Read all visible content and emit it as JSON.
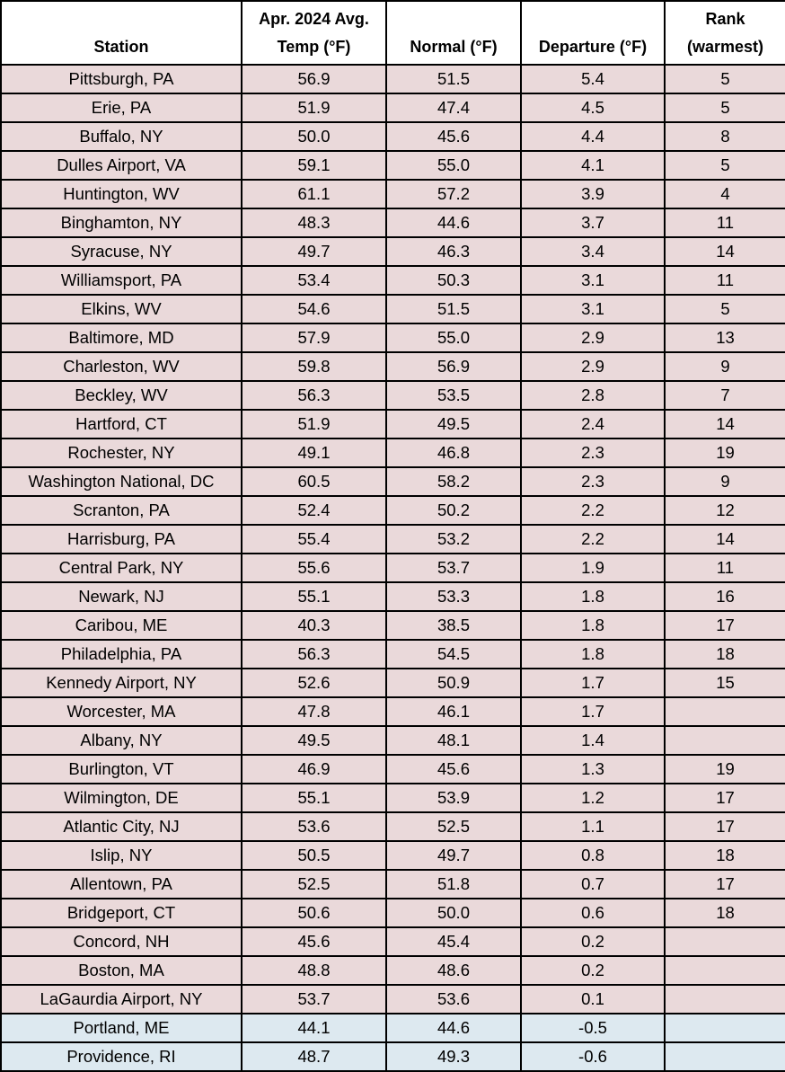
{
  "headers": {
    "station": "Station",
    "avg_temp": [
      "Apr. 2024 Avg.",
      "Temp (°F)"
    ],
    "normal": "Normal (°F)",
    "departure": "Departure (°F)",
    "rank": [
      "Rank",
      "(warmest)"
    ]
  },
  "colors": {
    "warm": "#ead9da",
    "cool": "#dde9f0"
  },
  "rows": [
    {
      "station": "Pittsburgh, PA",
      "avg": "56.9",
      "normal": "51.5",
      "departure": "5.4",
      "rank": "5",
      "fill": "warm"
    },
    {
      "station": "Erie, PA",
      "avg": "51.9",
      "normal": "47.4",
      "departure": "4.5",
      "rank": "5",
      "fill": "warm"
    },
    {
      "station": "Buffalo, NY",
      "avg": "50.0",
      "normal": "45.6",
      "departure": "4.4",
      "rank": "8",
      "fill": "warm"
    },
    {
      "station": "Dulles Airport, VA",
      "avg": "59.1",
      "normal": "55.0",
      "departure": "4.1",
      "rank": "5",
      "fill": "warm"
    },
    {
      "station": "Huntington, WV",
      "avg": "61.1",
      "normal": "57.2",
      "departure": "3.9",
      "rank": "4",
      "fill": "warm"
    },
    {
      "station": "Binghamton, NY",
      "avg": "48.3",
      "normal": "44.6",
      "departure": "3.7",
      "rank": "11",
      "fill": "warm"
    },
    {
      "station": "Syracuse, NY",
      "avg": "49.7",
      "normal": "46.3",
      "departure": "3.4",
      "rank": "14",
      "fill": "warm"
    },
    {
      "station": "Williamsport, PA",
      "avg": "53.4",
      "normal": "50.3",
      "departure": "3.1",
      "rank": "11",
      "fill": "warm"
    },
    {
      "station": "Elkins, WV",
      "avg": "54.6",
      "normal": "51.5",
      "departure": "3.1",
      "rank": "5",
      "fill": "warm"
    },
    {
      "station": "Baltimore, MD",
      "avg": "57.9",
      "normal": "55.0",
      "departure": "2.9",
      "rank": "13",
      "fill": "warm"
    },
    {
      "station": "Charleston, WV",
      "avg": "59.8",
      "normal": "56.9",
      "departure": "2.9",
      "rank": "9",
      "fill": "warm"
    },
    {
      "station": "Beckley, WV",
      "avg": "56.3",
      "normal": "53.5",
      "departure": "2.8",
      "rank": "7",
      "fill": "warm"
    },
    {
      "station": "Hartford, CT",
      "avg": "51.9",
      "normal": "49.5",
      "departure": "2.4",
      "rank": "14",
      "fill": "warm"
    },
    {
      "station": "Rochester, NY",
      "avg": "49.1",
      "normal": "46.8",
      "departure": "2.3",
      "rank": "19",
      "fill": "warm"
    },
    {
      "station": "Washington National, DC",
      "avg": "60.5",
      "normal": "58.2",
      "departure": "2.3",
      "rank": "9",
      "fill": "warm"
    },
    {
      "station": "Scranton, PA",
      "avg": "52.4",
      "normal": "50.2",
      "departure": "2.2",
      "rank": "12",
      "fill": "warm"
    },
    {
      "station": "Harrisburg, PA",
      "avg": "55.4",
      "normal": "53.2",
      "departure": "2.2",
      "rank": "14",
      "fill": "warm"
    },
    {
      "station": "Central Park, NY",
      "avg": "55.6",
      "normal": "53.7",
      "departure": "1.9",
      "rank": "11",
      "fill": "warm"
    },
    {
      "station": "Newark, NJ",
      "avg": "55.1",
      "normal": "53.3",
      "departure": "1.8",
      "rank": "16",
      "fill": "warm"
    },
    {
      "station": "Caribou, ME",
      "avg": "40.3",
      "normal": "38.5",
      "departure": "1.8",
      "rank": "17",
      "fill": "warm"
    },
    {
      "station": "Philadelphia, PA",
      "avg": "56.3",
      "normal": "54.5",
      "departure": "1.8",
      "rank": "18",
      "fill": "warm"
    },
    {
      "station": "Kennedy Airport, NY",
      "avg": "52.6",
      "normal": "50.9",
      "departure": "1.7",
      "rank": "15",
      "fill": "warm"
    },
    {
      "station": "Worcester, MA",
      "avg": "47.8",
      "normal": "46.1",
      "departure": "1.7",
      "rank": "",
      "fill": "warm"
    },
    {
      "station": "Albany, NY",
      "avg": "49.5",
      "normal": "48.1",
      "departure": "1.4",
      "rank": "",
      "fill": "warm"
    },
    {
      "station": "Burlington, VT",
      "avg": "46.9",
      "normal": "45.6",
      "departure": "1.3",
      "rank": "19",
      "fill": "warm"
    },
    {
      "station": "Wilmington, DE",
      "avg": "55.1",
      "normal": "53.9",
      "departure": "1.2",
      "rank": "17",
      "fill": "warm"
    },
    {
      "station": "Atlantic City, NJ",
      "avg": "53.6",
      "normal": "52.5",
      "departure": "1.1",
      "rank": "17",
      "fill": "warm"
    },
    {
      "station": "Islip, NY",
      "avg": "50.5",
      "normal": "49.7",
      "departure": "0.8",
      "rank": "18",
      "fill": "warm"
    },
    {
      "station": "Allentown, PA",
      "avg": "52.5",
      "normal": "51.8",
      "departure": "0.7",
      "rank": "17",
      "fill": "warm"
    },
    {
      "station": "Bridgeport, CT",
      "avg": "50.6",
      "normal": "50.0",
      "departure": "0.6",
      "rank": "18",
      "fill": "warm"
    },
    {
      "station": "Concord, NH",
      "avg": "45.6",
      "normal": "45.4",
      "departure": "0.2",
      "rank": "",
      "fill": "warm"
    },
    {
      "station": "Boston, MA",
      "avg": "48.8",
      "normal": "48.6",
      "departure": "0.2",
      "rank": "",
      "fill": "warm"
    },
    {
      "station": "LaGaurdia Airport, NY",
      "avg": "53.7",
      "normal": "53.6",
      "departure": "0.1",
      "rank": "",
      "fill": "warm"
    },
    {
      "station": "Portland, ME",
      "avg": "44.1",
      "normal": "44.6",
      "departure": "-0.5",
      "rank": "",
      "fill": "cool"
    },
    {
      "station": "Providence, RI",
      "avg": "48.7",
      "normal": "49.3",
      "departure": "-0.6",
      "rank": "",
      "fill": "cool"
    }
  ]
}
